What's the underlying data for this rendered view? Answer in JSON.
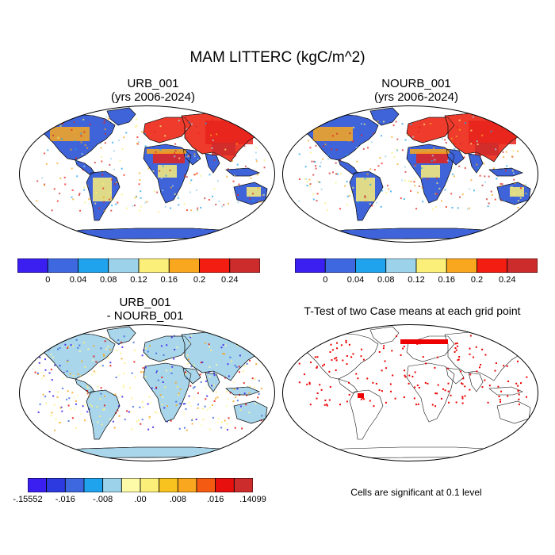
{
  "figure": {
    "title": "MAM LITTERC (kgC/m^2)"
  },
  "panels": [
    {
      "id": "urb",
      "title_line1": "URB_001",
      "title_line2": "(yrs 2006-2024)"
    },
    {
      "id": "nourb",
      "title_line1": "NOURB_001",
      "title_line2": "(yrs 2006-2024)"
    },
    {
      "id": "diff",
      "title_line1": "URB_001",
      "title_line2": "- NOURB_001"
    },
    {
      "id": "ttest",
      "title_line1": "T-Test of two Case means at each grid point",
      "title_line2": ""
    }
  ],
  "colorbar_main": {
    "colors": [
      "#3a1ff0",
      "#3d68e0",
      "#1fa3ec",
      "#9cd3ea",
      "#fbef7a",
      "#f8a71f",
      "#f41d12",
      "#cc2c2c"
    ],
    "labels": [
      "0",
      "0.04",
      "0.08",
      "0.12",
      "0.16",
      "0.2",
      "0.24"
    ]
  },
  "colorbar_diff": {
    "colors": [
      "#3a1ff0",
      "#2c3ae0",
      "#3d68e0",
      "#1fa3ec",
      "#9cd3ea",
      "#fdfaa8",
      "#fbef7a",
      "#f8c21f",
      "#f8a71f",
      "#f45a12",
      "#e80f0f",
      "#cc2c2c"
    ],
    "labels": [
      "-.15552",
      "-.016",
      "-.008",
      ".00",
      ".008",
      ".016",
      ".14099"
    ]
  },
  "note": "Cells are significant at 0.1 level"
}
